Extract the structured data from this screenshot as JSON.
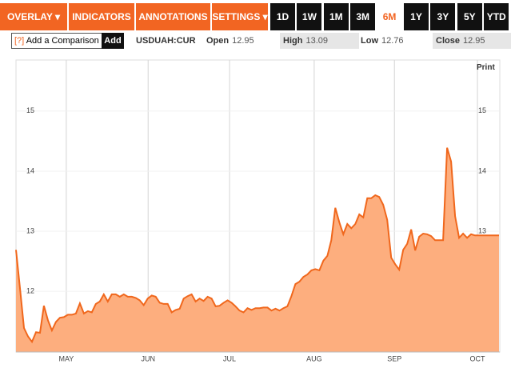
{
  "toolbar": {
    "menus": [
      "OVERLAY ▾",
      "INDICATORS ▾",
      "ANNOTATIONS ▾",
      "SETTINGS ▾"
    ],
    "ranges": [
      "1D",
      "1W",
      "1M",
      "3M",
      "6M",
      "1Y",
      "3Y",
      "5Y",
      "YTD"
    ],
    "active_range": "6M"
  },
  "quote_bar": {
    "help": "[?]",
    "comparison_placeholder": "Add a Comparison",
    "add_button": "Add",
    "ticker": "USDUAH:CUR",
    "fields": [
      {
        "label": "Open",
        "value": "12.95"
      },
      {
        "label": "High",
        "value": "13.09"
      },
      {
        "label": "Low",
        "value": "12.76"
      },
      {
        "label": "Close",
        "value": "12.95"
      }
    ]
  },
  "print": "Print",
  "chart_data": {
    "type": "area",
    "color": "#f0671c",
    "fill": "#fdae7e",
    "values": [
      12.69,
      12.05,
      11.39,
      11.25,
      11.16,
      11.32,
      11.31,
      11.76,
      11.52,
      11.35,
      11.49,
      11.56,
      11.57,
      11.61,
      11.61,
      11.63,
      11.8,
      11.63,
      11.67,
      11.65,
      11.79,
      11.83,
      11.95,
      11.83,
      11.95,
      11.95,
      11.91,
      11.95,
      11.91,
      11.91,
      11.89,
      11.85,
      11.77,
      11.88,
      11.93,
      11.91,
      11.81,
      11.79,
      11.79,
      11.65,
      11.69,
      11.71,
      11.88,
      11.92,
      11.95,
      11.83,
      11.88,
      11.84,
      11.91,
      11.88,
      11.75,
      11.76,
      11.81,
      11.85,
      11.81,
      11.75,
      11.68,
      11.65,
      11.72,
      11.69,
      11.72,
      11.72,
      11.73,
      11.73,
      11.68,
      11.71,
      11.68,
      11.72,
      11.75,
      11.92,
      12.12,
      12.16,
      12.24,
      12.28,
      12.35,
      12.37,
      12.35,
      12.51,
      12.59,
      12.85,
      13.39,
      13.15,
      12.95,
      13.12,
      13.05,
      13.12,
      13.28,
      13.23,
      13.55,
      13.55,
      13.6,
      13.57,
      13.44,
      13.19,
      12.56,
      12.45,
      12.36,
      12.69,
      12.79,
      13.03,
      12.68,
      12.91,
      12.96,
      12.95,
      12.92,
      12.85,
      12.85,
      12.85,
      14.39,
      14.16,
      13.25,
      12.89,
      12.96,
      12.89,
      12.95,
      12.93,
      12.93,
      12.93,
      12.93,
      12.93,
      12.93,
      12.93
    ],
    "xlim": [
      0,
      121
    ],
    "xticks": [
      {
        "value": 12.6,
        "label": "MAY"
      },
      {
        "value": 33.1,
        "label": "JUN"
      },
      {
        "value": 53.5,
        "label": "JUL"
      },
      {
        "value": 74.7,
        "label": "AUG"
      },
      {
        "value": 94.8,
        "label": "SEP"
      },
      {
        "value": 115.6,
        "label": "OCT"
      }
    ],
    "ylim": [
      10.99,
      15.85
    ],
    "yticks": [
      12,
      13,
      14,
      15
    ],
    "grid": true
  }
}
